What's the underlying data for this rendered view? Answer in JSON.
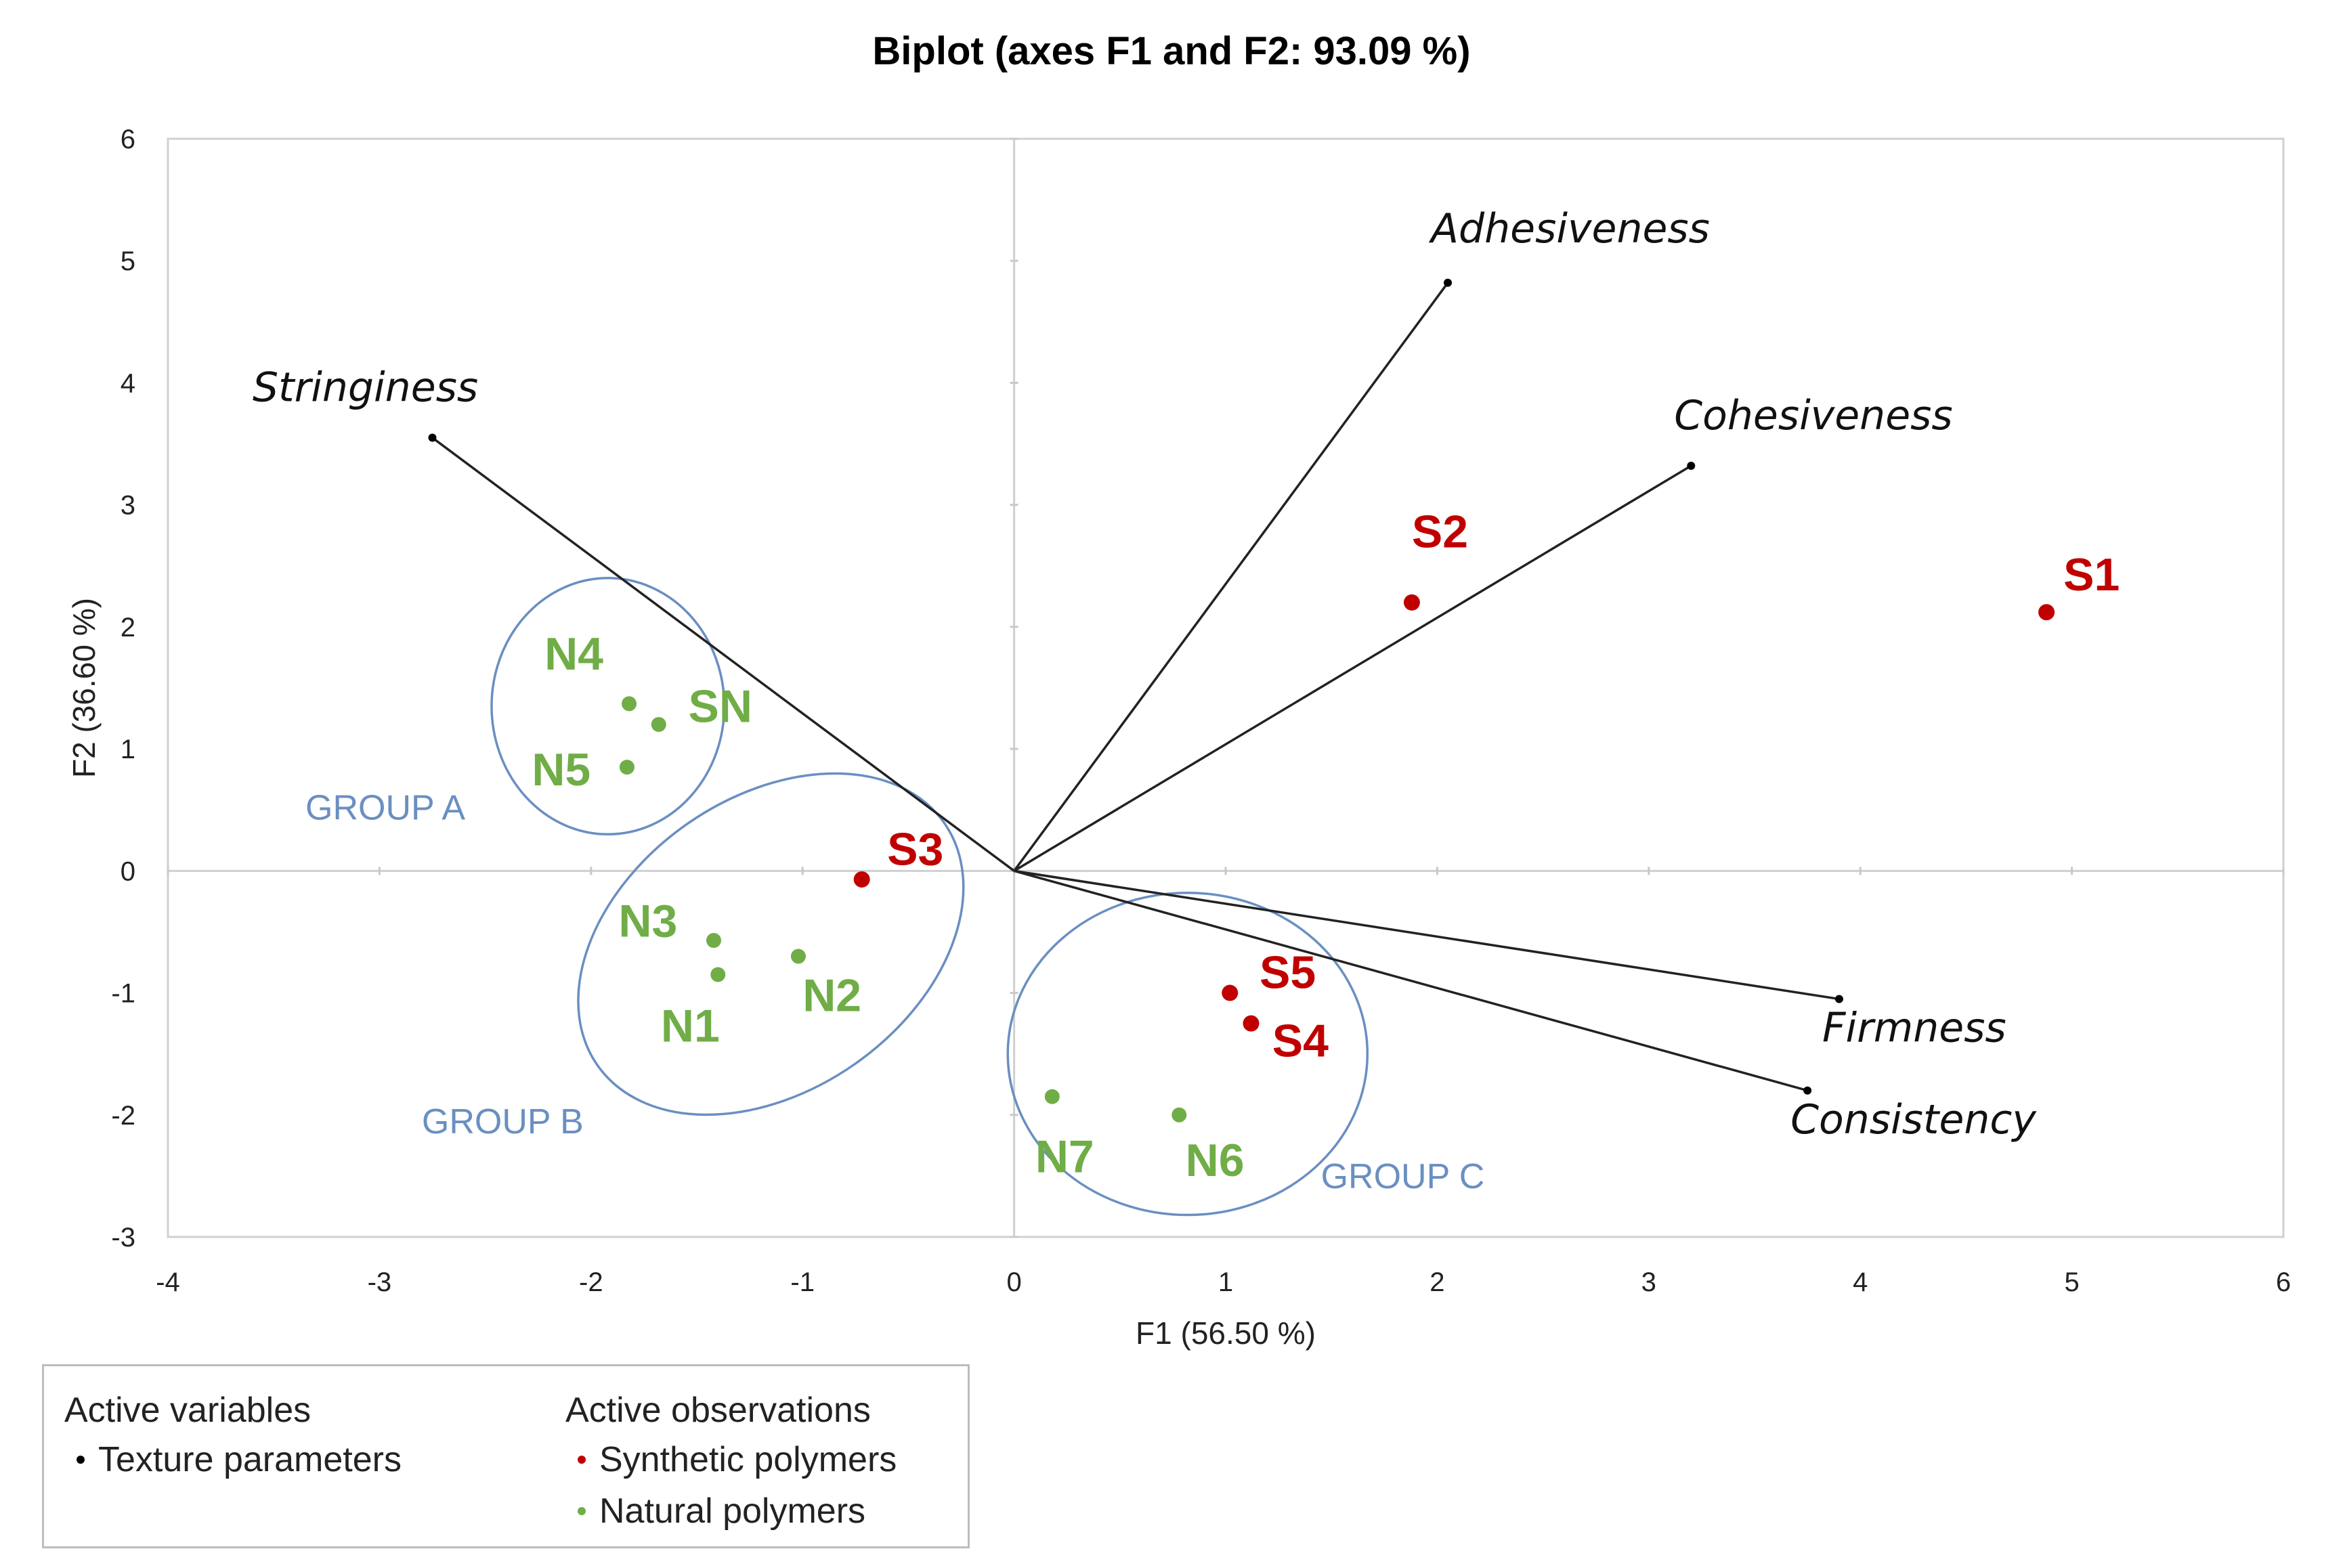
{
  "chart_data": {
    "type": "scatter",
    "title": "Biplot (axes F1 and F2: 93.09 %)",
    "xlabel": "F1 (56.50 %)",
    "ylabel": "F2 (36.60 %)",
    "xlim": [
      -4,
      6
    ],
    "ylim": [
      -3,
      6
    ],
    "xticks": [
      "-4",
      "-3",
      "-2",
      "-1",
      "0",
      "1",
      "2",
      "3",
      "4",
      "5",
      "6"
    ],
    "yticks": [
      "-3",
      "-2",
      "-1",
      "0",
      "1",
      "2",
      "3",
      "4",
      "5",
      "6"
    ],
    "variables": [
      {
        "name": "Stringiness",
        "x": -2.75,
        "y": 3.55
      },
      {
        "name": "Adhesiveness",
        "x": 2.05,
        "y": 4.82
      },
      {
        "name": "Cohesiveness",
        "x": 3.2,
        "y": 3.32
      },
      {
        "name": "Firmness",
        "x": 3.9,
        "y": -1.05
      },
      {
        "name": "Consistency",
        "x": 3.75,
        "y": -1.8
      }
    ],
    "series": [
      {
        "name": "Synthetic polymers",
        "color": "#c00000",
        "points": [
          {
            "label": "S1",
            "x": 4.88,
            "y": 2.12
          },
          {
            "label": "S2",
            "x": 1.88,
            "y": 2.2
          },
          {
            "label": "S3",
            "x": -0.72,
            "y": -0.07
          },
          {
            "label": "S4",
            "x": 1.12,
            "y": -1.25
          },
          {
            "label": "S5",
            "x": 1.02,
            "y": -1.0
          }
        ]
      },
      {
        "name": "Natural polymers",
        "color": "#70ad47",
        "points": [
          {
            "label": "N4",
            "x": -1.82,
            "y": 1.37
          },
          {
            "label": "SN",
            "x": -1.68,
            "y": 1.2
          },
          {
            "label": "N5",
            "x": -1.83,
            "y": 0.85
          },
          {
            "label": "N3",
            "x": -1.42,
            "y": -0.57
          },
          {
            "label": "N1",
            "x": -1.4,
            "y": -0.85
          },
          {
            "label": "N2",
            "x": -1.02,
            "y": -0.7
          },
          {
            "label": "N7",
            "x": 0.18,
            "y": -1.85
          },
          {
            "label": "N6",
            "x": 0.78,
            "y": -2.0
          }
        ]
      }
    ],
    "groups": [
      {
        "name": "GROUP A",
        "cx": -1.92,
        "cy": 1.35,
        "rx": 0.55,
        "ry": 1.05,
        "rot": 0
      },
      {
        "name": "GROUP B",
        "cx": -1.15,
        "cy": -0.6,
        "rx": 1.0,
        "ry": 1.2,
        "rot": -35
      },
      {
        "name": "GROUP C",
        "cx": 0.82,
        "cy": -1.5,
        "rx": 0.85,
        "ry": 1.32,
        "rot": 0
      }
    ],
    "grid": false,
    "legend": {
      "position": "bottom-left",
      "variables_header": "Active variables",
      "variables_item": "Texture parameters",
      "observations_header": "Active observations",
      "observations_items": [
        "Synthetic polymers",
        "Natural polymers"
      ]
    },
    "colors": {
      "variables": "#000000",
      "synthetic": "#c00000",
      "natural": "#70ad47",
      "group": "#6a8fc1"
    }
  }
}
